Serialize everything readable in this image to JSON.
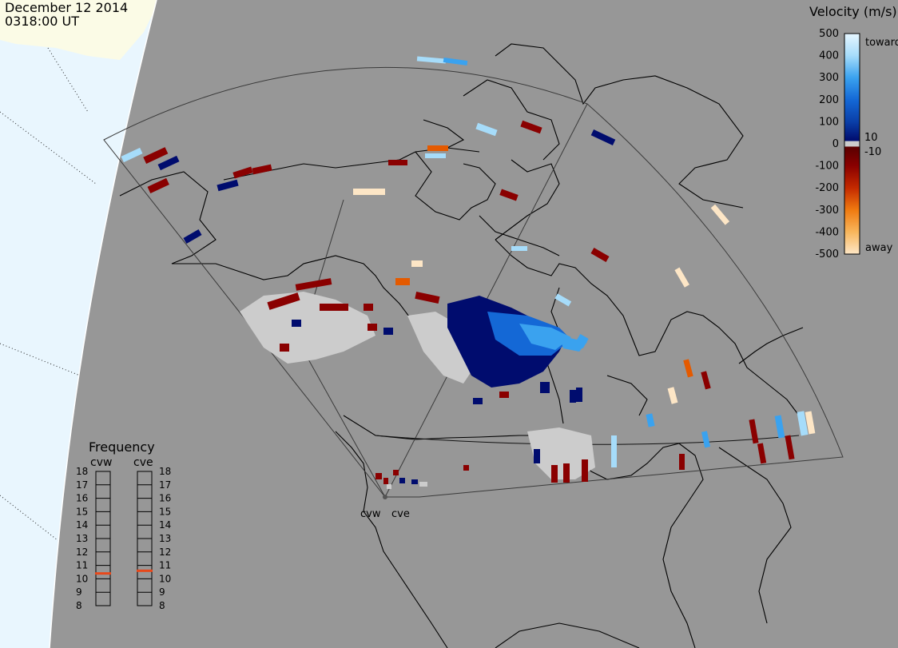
{
  "header": {
    "date": "December 12 2014",
    "time": "0318:00 UT"
  },
  "velocity_scale": {
    "title": "Velocity (m/s)",
    "toward_label": "toward",
    "away_label": "away",
    "ticks": [
      "500",
      "400",
      "300",
      "200",
      "100",
      "10",
      "0",
      "-10",
      "-100",
      "-200",
      "-300",
      "-400",
      "-500"
    ],
    "tick_values": [
      500,
      400,
      300,
      200,
      100,
      10,
      0,
      -10,
      -100,
      -200,
      -300,
      -400,
      -500
    ],
    "color_stops": [
      {
        "value": 500,
        "color": "#dff3ff"
      },
      {
        "value": 400,
        "color": "#a6dcfa"
      },
      {
        "value": 300,
        "color": "#3aa2ef"
      },
      {
        "value": 200,
        "color": "#1468d6"
      },
      {
        "value": 100,
        "color": "#0a3fa8"
      },
      {
        "value": 10,
        "color": "#000c6e"
      },
      {
        "value": 0,
        "color": "#cccccc"
      },
      {
        "value": -10,
        "color": "#5a0000"
      },
      {
        "value": -100,
        "color": "#8a0000"
      },
      {
        "value": -200,
        "color": "#c42a00"
      },
      {
        "value": -300,
        "color": "#e45a00"
      },
      {
        "value": -400,
        "color": "#f39a2c"
      },
      {
        "value": -500,
        "color": "#fde6c6"
      }
    ]
  },
  "frequency_panel": {
    "title": "Frequency",
    "radars": [
      {
        "name": "cvw",
        "frequency_mhz": 10.4
      },
      {
        "name": "cve",
        "frequency_mhz": 10.6
      }
    ],
    "levels": [
      "18",
      "17",
      "16",
      "15",
      "14",
      "13",
      "12",
      "11",
      "10",
      "9",
      "8"
    ],
    "marker_color": "#e8481a"
  },
  "stations": [
    {
      "name": "cvw"
    },
    {
      "name": "cve"
    }
  ],
  "colors": {
    "ocean": "#e9f6fe",
    "ocean_ice": "#fbfbe6",
    "map_disk": "#979797",
    "coastline": "#000000",
    "fov_outline": "#444444"
  }
}
